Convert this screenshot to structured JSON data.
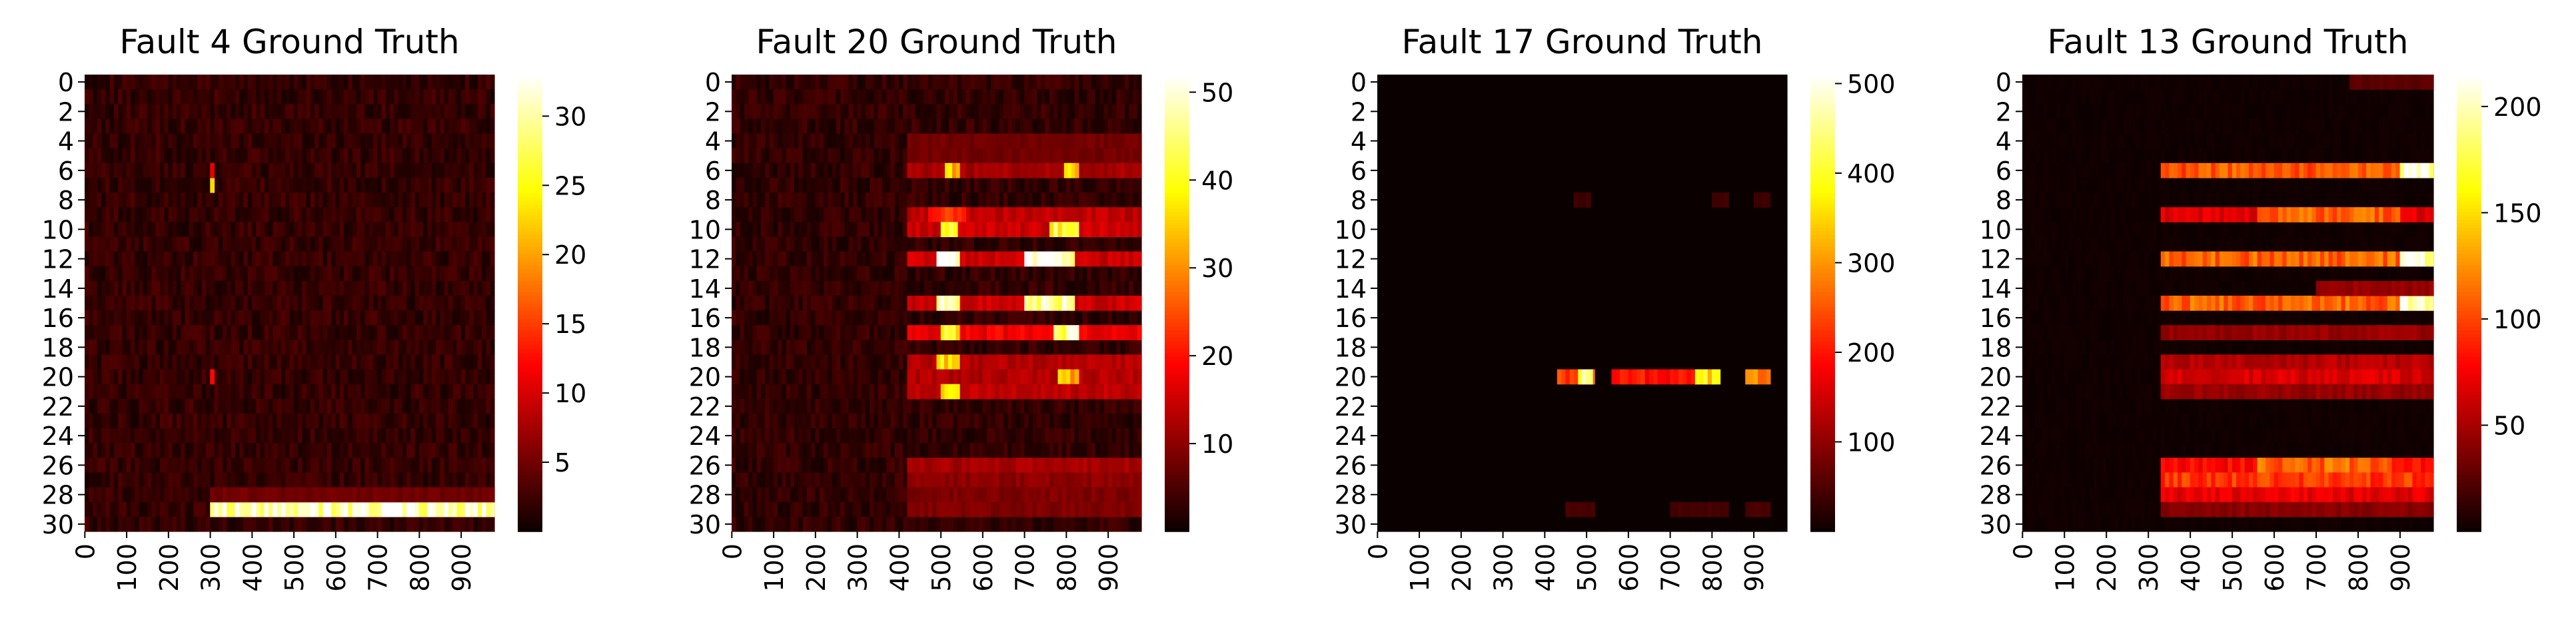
{
  "chart_data": [
    {
      "type": "heatmap",
      "title": "Fault 4 Ground Truth",
      "x_tick_labels": [
        "0",
        "100",
        "200",
        "300",
        "400",
        "500",
        "600",
        "700",
        "800",
        "900"
      ],
      "y_tick_labels": [
        "0",
        "2",
        "4",
        "6",
        "8",
        "10",
        "12",
        "14",
        "16",
        "18",
        "20",
        "22",
        "24",
        "26",
        "28",
        "30"
      ],
      "rows": 31,
      "x_range": [
        0,
        980
      ],
      "colormap": "hot",
      "colorbar": {
        "range": [
          0,
          33
        ],
        "ticks": [
          "5",
          "10",
          "15",
          "20",
          "25",
          "30"
        ],
        "tick_values": [
          5,
          10,
          15,
          20,
          25,
          30
        ]
      },
      "background_level": 2,
      "features": [
        {
          "row": 29,
          "x": [
            300,
            980
          ],
          "value": 31
        },
        {
          "row": 7,
          "x": [
            300,
            310
          ],
          "value": 20
        },
        {
          "row": 6,
          "x": [
            300,
            310
          ],
          "value": 10
        },
        {
          "row": 20,
          "x": [
            300,
            310
          ],
          "value": 12
        },
        {
          "row": 28,
          "x": [
            300,
            980
          ],
          "value": 5
        }
      ]
    },
    {
      "type": "heatmap",
      "title": "Fault 20 Ground Truth",
      "x_tick_labels": [
        "0",
        "100",
        "200",
        "300",
        "400",
        "500",
        "600",
        "700",
        "800",
        "900"
      ],
      "y_tick_labels": [
        "0",
        "2",
        "4",
        "6",
        "8",
        "10",
        "12",
        "14",
        "16",
        "18",
        "20",
        "22",
        "24",
        "26",
        "28",
        "30"
      ],
      "rows": 31,
      "x_range": [
        0,
        980
      ],
      "colormap": "hot",
      "colorbar": {
        "range": [
          0,
          52
        ],
        "ticks": [
          "10",
          "20",
          "30",
          "40",
          "50"
        ],
        "tick_values": [
          10,
          20,
          30,
          40,
          50
        ]
      },
      "background_level": 3,
      "features": [
        {
          "row": 4,
          "x": [
            420,
            980
          ],
          "value": 8
        },
        {
          "row": 5,
          "x": [
            420,
            980
          ],
          "value": 8
        },
        {
          "row": 6,
          "x": [
            420,
            980
          ],
          "value": 12
        },
        {
          "row": 6,
          "x": [
            510,
            545
          ],
          "value": 34
        },
        {
          "row": 6,
          "x": [
            795,
            830
          ],
          "value": 34
        },
        {
          "row": 9,
          "x": [
            420,
            980
          ],
          "value": 14
        },
        {
          "row": 9,
          "x": [
            470,
            560
          ],
          "value": 22
        },
        {
          "row": 10,
          "x": [
            420,
            980
          ],
          "value": 15
        },
        {
          "row": 10,
          "x": [
            500,
            540
          ],
          "value": 42
        },
        {
          "row": 10,
          "x": [
            760,
            830
          ],
          "value": 40
        },
        {
          "row": 12,
          "x": [
            420,
            980
          ],
          "value": 15
        },
        {
          "row": 12,
          "x": [
            490,
            545
          ],
          "value": 52
        },
        {
          "row": 12,
          "x": [
            700,
            820
          ],
          "value": 50
        },
        {
          "row": 15,
          "x": [
            420,
            980
          ],
          "value": 15
        },
        {
          "row": 15,
          "x": [
            490,
            545
          ],
          "value": 50
        },
        {
          "row": 15,
          "x": [
            700,
            820
          ],
          "value": 48
        },
        {
          "row": 17,
          "x": [
            420,
            980
          ],
          "value": 18
        },
        {
          "row": 17,
          "x": [
            500,
            545
          ],
          "value": 40
        },
        {
          "row": 17,
          "x": [
            770,
            830
          ],
          "value": 45
        },
        {
          "row": 19,
          "x": [
            420,
            980
          ],
          "value": 13
        },
        {
          "row": 19,
          "x": [
            490,
            545
          ],
          "value": 36
        },
        {
          "row": 20,
          "x": [
            420,
            980
          ],
          "value": 13
        },
        {
          "row": 20,
          "x": [
            780,
            830
          ],
          "value": 33
        },
        {
          "row": 21,
          "x": [
            420,
            980
          ],
          "value": 14
        },
        {
          "row": 21,
          "x": [
            500,
            545
          ],
          "value": 34
        },
        {
          "row": 26,
          "x": [
            420,
            980
          ],
          "value": 12
        },
        {
          "row": 27,
          "x": [
            420,
            980
          ],
          "value": 10
        },
        {
          "row": 28,
          "x": [
            420,
            980
          ],
          "value": 9
        },
        {
          "row": 29,
          "x": [
            420,
            980
          ],
          "value": 9
        }
      ]
    },
    {
      "type": "heatmap",
      "title": "Fault 17 Ground Truth",
      "x_tick_labels": [
        "0",
        "100",
        "200",
        "300",
        "400",
        "500",
        "600",
        "700",
        "800",
        "900"
      ],
      "y_tick_labels": [
        "0",
        "2",
        "4",
        "6",
        "8",
        "10",
        "12",
        "14",
        "16",
        "18",
        "20",
        "22",
        "24",
        "26",
        "28",
        "30"
      ],
      "rows": 31,
      "x_range": [
        0,
        980
      ],
      "colormap": "hot",
      "colorbar": {
        "range": [
          0,
          510
        ],
        "ticks": [
          "100",
          "200",
          "300",
          "400",
          "500"
        ],
        "tick_values": [
          100,
          200,
          300,
          400,
          500
        ]
      },
      "background_level": 0,
      "features": [
        {
          "row": 8,
          "x": [
            470,
            510
          ],
          "value": 40
        },
        {
          "row": 8,
          "x": [
            800,
            840
          ],
          "value": 40
        },
        {
          "row": 8,
          "x": [
            900,
            940
          ],
          "value": 40
        },
        {
          "row": 20,
          "x": [
            430,
            520
          ],
          "value": 230
        },
        {
          "row": 20,
          "x": [
            480,
            515
          ],
          "value": 420
        },
        {
          "row": 20,
          "x": [
            560,
            810
          ],
          "value": 200
        },
        {
          "row": 20,
          "x": [
            760,
            820
          ],
          "value": 360
        },
        {
          "row": 20,
          "x": [
            880,
            940
          ],
          "value": 300
        },
        {
          "row": 29,
          "x": [
            450,
            520
          ],
          "value": 45
        },
        {
          "row": 29,
          "x": [
            700,
            840
          ],
          "value": 45
        },
        {
          "row": 29,
          "x": [
            880,
            940
          ],
          "value": 45
        }
      ]
    },
    {
      "type": "heatmap",
      "title": "Fault 13 Ground Truth",
      "x_tick_labels": [
        "0",
        "100",
        "200",
        "300",
        "400",
        "500",
        "600",
        "700",
        "800",
        "900"
      ],
      "y_tick_labels": [
        "0",
        "2",
        "4",
        "6",
        "8",
        "10",
        "12",
        "14",
        "16",
        "18",
        "20",
        "22",
        "24",
        "26",
        "28",
        "30"
      ],
      "rows": 31,
      "x_range": [
        0,
        980
      ],
      "colormap": "hot",
      "colorbar": {
        "range": [
          0,
          215
        ],
        "ticks": [
          "50",
          "100",
          "150",
          "200"
        ],
        "tick_values": [
          50,
          100,
          150,
          200
        ]
      },
      "background_level": 2,
      "features": [
        {
          "row": 0,
          "x": [
            780,
            980
          ],
          "value": 25
        },
        {
          "row": 6,
          "x": [
            330,
            980
          ],
          "value": 105
        },
        {
          "row": 6,
          "x": [
            900,
            980
          ],
          "value": 210
        },
        {
          "row": 9,
          "x": [
            330,
            980
          ],
          "value": 70
        },
        {
          "row": 9,
          "x": [
            560,
            900
          ],
          "value": 110
        },
        {
          "row": 12,
          "x": [
            330,
            980
          ],
          "value": 110
        },
        {
          "row": 12,
          "x": [
            900,
            980
          ],
          "value": 210
        },
        {
          "row": 15,
          "x": [
            330,
            980
          ],
          "value": 110
        },
        {
          "row": 15,
          "x": [
            900,
            980
          ],
          "value": 210
        },
        {
          "row": 14,
          "x": [
            700,
            980
          ],
          "value": 45
        },
        {
          "row": 17,
          "x": [
            330,
            980
          ],
          "value": 45
        },
        {
          "row": 19,
          "x": [
            330,
            980
          ],
          "value": 55
        },
        {
          "row": 20,
          "x": [
            330,
            980
          ],
          "value": 65
        },
        {
          "row": 21,
          "x": [
            330,
            980
          ],
          "value": 45
        },
        {
          "row": 26,
          "x": [
            330,
            980
          ],
          "value": 80
        },
        {
          "row": 26,
          "x": [
            560,
            880
          ],
          "value": 110
        },
        {
          "row": 27,
          "x": [
            330,
            980
          ],
          "value": 95
        },
        {
          "row": 28,
          "x": [
            330,
            980
          ],
          "value": 70
        },
        {
          "row": 29,
          "x": [
            330,
            980
          ],
          "value": 40
        }
      ]
    }
  ]
}
